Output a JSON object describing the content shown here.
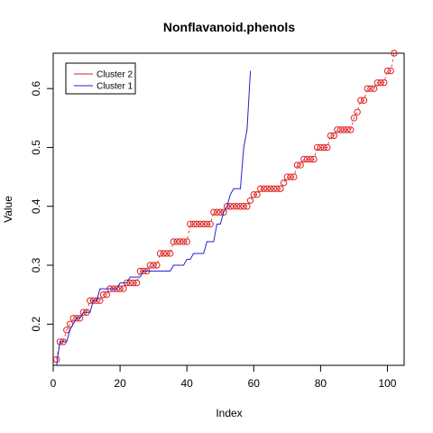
{
  "chart_data": {
    "type": "line",
    "title": "Nonflavanoid.phenols",
    "xlabel": "Index",
    "ylabel": "Value",
    "xlim": [
      0,
      105
    ],
    "ylim": [
      0.13,
      0.66
    ],
    "x_ticks": [
      0,
      20,
      40,
      60,
      80,
      100
    ],
    "x_tick_labels": [
      "0",
      "20",
      "40",
      "60",
      "80",
      "100"
    ],
    "y_ticks": [
      0.2,
      0.3,
      0.4,
      0.5,
      0.6
    ],
    "y_tick_labels": [
      "0.2",
      "0.3",
      "0.4",
      "0.5",
      "0.6"
    ],
    "grid": false,
    "legend": {
      "position": "top-left",
      "entries": [
        {
          "label": "Cluster 2",
          "color": "#dd2222"
        },
        {
          "label": "Cluster 1",
          "color": "#2222cc"
        }
      ]
    },
    "series": [
      {
        "name": "Cluster 2",
        "style": "points-with-dashed-line",
        "color": "#dd2222",
        "x": [
          1,
          2,
          3,
          4,
          5,
          6,
          7,
          8,
          9,
          10,
          11,
          12,
          13,
          14,
          15,
          16,
          17,
          18,
          19,
          20,
          21,
          22,
          23,
          24,
          25,
          26,
          27,
          28,
          29,
          30,
          31,
          32,
          33,
          34,
          35,
          36,
          37,
          38,
          39,
          40,
          41,
          42,
          43,
          44,
          45,
          46,
          47,
          48,
          49,
          50,
          51,
          52,
          53,
          54,
          55,
          56,
          57,
          58,
          59,
          60,
          61,
          62,
          63,
          64,
          65,
          66,
          67,
          68,
          69,
          70,
          71,
          72,
          73,
          74,
          75,
          76,
          77,
          78,
          79,
          80,
          81,
          82,
          83,
          84,
          85,
          86,
          87,
          88,
          89,
          90,
          91,
          92,
          93,
          94,
          95,
          96,
          97,
          98,
          99,
          100,
          101,
          102
        ],
        "values": [
          0.14,
          0.17,
          0.17,
          0.19,
          0.2,
          0.21,
          0.21,
          0.21,
          0.22,
          0.22,
          0.24,
          0.24,
          0.24,
          0.24,
          0.25,
          0.25,
          0.26,
          0.26,
          0.26,
          0.26,
          0.26,
          0.27,
          0.27,
          0.27,
          0.27,
          0.29,
          0.29,
          0.29,
          0.3,
          0.3,
          0.3,
          0.32,
          0.32,
          0.32,
          0.32,
          0.34,
          0.34,
          0.34,
          0.34,
          0.34,
          0.37,
          0.37,
          0.37,
          0.37,
          0.37,
          0.37,
          0.37,
          0.39,
          0.39,
          0.39,
          0.39,
          0.4,
          0.4,
          0.4,
          0.4,
          0.4,
          0.4,
          0.4,
          0.41,
          0.42,
          0.42,
          0.43,
          0.43,
          0.43,
          0.43,
          0.43,
          0.43,
          0.43,
          0.44,
          0.45,
          0.45,
          0.45,
          0.47,
          0.47,
          0.48,
          0.48,
          0.48,
          0.48,
          0.5,
          0.5,
          0.5,
          0.5,
          0.52,
          0.52,
          0.53,
          0.53,
          0.53,
          0.53,
          0.53,
          0.55,
          0.56,
          0.58,
          0.58,
          0.6,
          0.6,
          0.6,
          0.61,
          0.61,
          0.61,
          0.63,
          0.63,
          0.66
        ]
      },
      {
        "name": "Cluster 1",
        "style": "line",
        "color": "#2222cc",
        "x": [
          1,
          2,
          3,
          4,
          5,
          6,
          7,
          8,
          9,
          10,
          11,
          12,
          13,
          14,
          15,
          16,
          17,
          18,
          19,
          20,
          21,
          22,
          23,
          24,
          25,
          26,
          27,
          28,
          29,
          30,
          31,
          32,
          33,
          34,
          35,
          36,
          37,
          38,
          39,
          40,
          41,
          42,
          43,
          44,
          45,
          46,
          47,
          48,
          49,
          50,
          51,
          52,
          53,
          54,
          55,
          56,
          57,
          58,
          59
        ],
        "values": [
          0.13,
          0.17,
          0.17,
          0.17,
          0.19,
          0.2,
          0.21,
          0.21,
          0.22,
          0.22,
          0.22,
          0.24,
          0.24,
          0.26,
          0.26,
          0.26,
          0.26,
          0.26,
          0.26,
          0.27,
          0.27,
          0.27,
          0.28,
          0.28,
          0.28,
          0.28,
          0.29,
          0.29,
          0.29,
          0.29,
          0.29,
          0.29,
          0.29,
          0.29,
          0.29,
          0.3,
          0.3,
          0.3,
          0.3,
          0.31,
          0.31,
          0.32,
          0.32,
          0.32,
          0.32,
          0.34,
          0.34,
          0.34,
          0.37,
          0.37,
          0.39,
          0.4,
          0.42,
          0.43,
          0.43,
          0.43,
          0.5,
          0.53,
          0.63
        ]
      }
    ]
  }
}
